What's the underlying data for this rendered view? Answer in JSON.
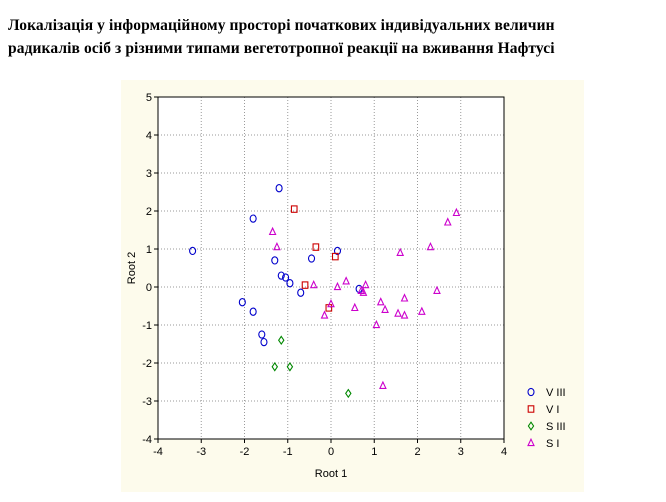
{
  "caption": {
    "line1": "Локалізація у інформаційному просторі початкових індивідуальних величин",
    "line2": "радикалів осіб з різними типами вегетотропної реакції на вживання Нафтусі"
  },
  "chart_data": {
    "type": "scatter",
    "xlabel": "Root 1",
    "ylabel": "Root 2",
    "xlim": [
      -4,
      4
    ],
    "ylim": [
      -4,
      5
    ],
    "x_ticks": [
      -4,
      -3,
      -2,
      -1,
      0,
      1,
      2,
      3,
      4
    ],
    "y_ticks": [
      -4,
      -3,
      -2,
      -1,
      0,
      1,
      2,
      3,
      4,
      5
    ],
    "grid": true,
    "legend_position": "bottom-right",
    "series": [
      {
        "name": "V III",
        "marker": "circle",
        "color": "#0000cc",
        "points": [
          [
            -3.2,
            0.95
          ],
          [
            -1.2,
            2.6
          ],
          [
            -1.8,
            1.8
          ],
          [
            -2.05,
            -0.4
          ],
          [
            -1.8,
            -0.65
          ],
          [
            -1.3,
            0.7
          ],
          [
            -1.15,
            0.3
          ],
          [
            -1.05,
            0.25
          ],
          [
            -0.95,
            0.1
          ],
          [
            -0.7,
            -0.15
          ],
          [
            -0.45,
            0.75
          ],
          [
            0.15,
            0.95
          ],
          [
            -1.6,
            -1.25
          ],
          [
            -1.55,
            -1.45
          ],
          [
            0.65,
            -0.05
          ]
        ]
      },
      {
        "name": "V I",
        "marker": "square",
        "color": "#cc0000",
        "points": [
          [
            -0.85,
            2.05
          ],
          [
            -0.35,
            1.05
          ],
          [
            -0.6,
            0.05
          ],
          [
            0.1,
            0.8
          ],
          [
            -0.05,
            -0.55
          ]
        ]
      },
      {
        "name": "S III",
        "marker": "diamond",
        "color": "#008800",
        "points": [
          [
            -1.15,
            -1.4
          ],
          [
            -1.3,
            -2.1
          ],
          [
            -0.95,
            -2.1
          ],
          [
            0.4,
            -2.8
          ]
        ]
      },
      {
        "name": "S I",
        "marker": "triangle",
        "color": "#cc00cc",
        "points": [
          [
            -1.35,
            1.45
          ],
          [
            -1.25,
            1.05
          ],
          [
            -0.4,
            0.05
          ],
          [
            -0.15,
            -0.75
          ],
          [
            0.0,
            -0.45
          ],
          [
            0.15,
            0.0
          ],
          [
            0.35,
            0.15
          ],
          [
            0.55,
            -0.55
          ],
          [
            0.75,
            -0.15
          ],
          [
            0.8,
            0.05
          ],
          [
            1.05,
            -1.0
          ],
          [
            1.15,
            -0.4
          ],
          [
            1.25,
            -0.6
          ],
          [
            1.55,
            -0.7
          ],
          [
            1.6,
            0.9
          ],
          [
            1.7,
            -0.3
          ],
          [
            1.7,
            -0.75
          ],
          [
            2.1,
            -0.65
          ],
          [
            2.3,
            1.05
          ],
          [
            2.45,
            -0.1
          ],
          [
            2.7,
            1.7
          ],
          [
            2.9,
            1.95
          ],
          [
            1.2,
            -2.6
          ],
          [
            0.7,
            -0.1
          ]
        ]
      }
    ]
  }
}
